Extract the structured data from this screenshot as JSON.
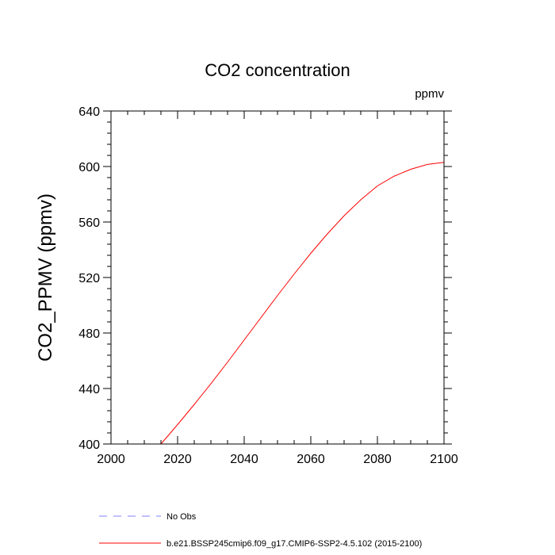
{
  "chart_data": {
    "type": "line",
    "title": "CO2 concentration",
    "units_label": "ppmv",
    "xlabel": "",
    "ylabel": "CO2_PPMV  (ppmv)",
    "xlim": [
      2000,
      2100
    ],
    "ylim": [
      400,
      640
    ],
    "x_ticks": [
      2000,
      2020,
      2040,
      2060,
      2080,
      2100
    ],
    "y_ticks": [
      400,
      440,
      480,
      520,
      560,
      600,
      640
    ],
    "x_minor_step": 5,
    "y_minor_step": 8,
    "grid": false,
    "legend_position": "bottom-left",
    "series": [
      {
        "name": "No Obs",
        "color": "#8080ff",
        "style": "dashed",
        "x": [],
        "y": []
      },
      {
        "name": "b.e21.BSSP245cmip6.f09_g17.CMIP6-SSP2-4.5.102 (2015-2100)",
        "color": "#ff0000",
        "style": "solid",
        "x": [
          2015,
          2020,
          2025,
          2030,
          2035,
          2040,
          2045,
          2050,
          2055,
          2060,
          2065,
          2070,
          2075,
          2080,
          2085,
          2090,
          2095,
          2100
        ],
        "y": [
          400,
          414,
          428.5,
          443.5,
          459,
          475,
          491,
          507,
          522.5,
          537.5,
          551.5,
          564.5,
          576,
          586,
          593,
          598,
          601.5,
          603
        ]
      }
    ]
  }
}
